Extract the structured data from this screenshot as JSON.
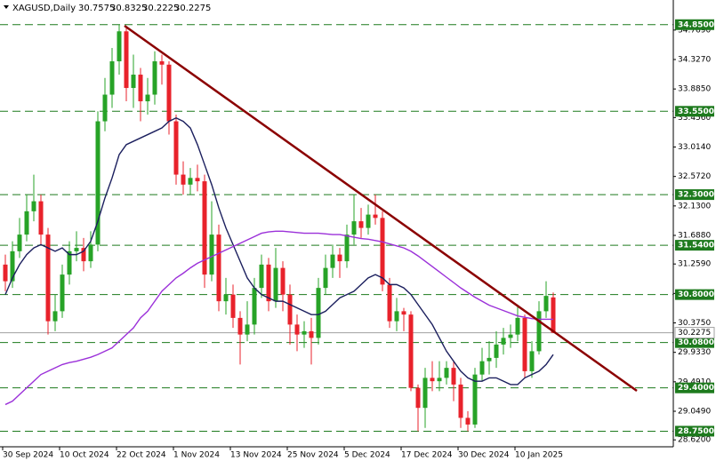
{
  "chart_data": {
    "type": "candlestick",
    "symbol": "XAGUSD,Daily",
    "categories": [
      "30 Sep 2024",
      null,
      null,
      null,
      null,
      null,
      null,
      null,
      "10 Oct 2024",
      null,
      null,
      null,
      null,
      null,
      null,
      null,
      "22 Oct 2024",
      null,
      null,
      null,
      null,
      null,
      null,
      null,
      "1 Nov 2024",
      null,
      null,
      null,
      null,
      null,
      null,
      null,
      "13 Nov 2024",
      null,
      null,
      null,
      null,
      null,
      null,
      null,
      "25 Nov 2024",
      null,
      null,
      null,
      null,
      null,
      null,
      null,
      "5 Dec 2024",
      null,
      null,
      null,
      null,
      null,
      null,
      null,
      "17 Dec 2024",
      null,
      null,
      null,
      null,
      null,
      null,
      null,
      "30 Dec 2024",
      null,
      null,
      null,
      null,
      null,
      null,
      null,
      "10 Jan 2025",
      null,
      null,
      null,
      null,
      null
    ],
    "open": [
      31.25,
      31.0,
      31.45,
      31.7,
      32.05,
      32.2,
      31.7,
      30.4,
      30.55,
      31.1,
      31.45,
      31.5,
      31.3,
      31.55,
      33.4,
      33.8,
      34.3,
      34.75,
      33.9,
      34.1,
      33.7,
      33.8,
      34.3,
      34.25,
      33.4,
      32.6,
      32.45,
      32.55,
      32.5,
      31.1,
      31.7,
      30.7,
      30.8,
      30.45,
      30.2,
      30.35,
      30.9,
      31.25,
      30.7,
      31.2,
      30.8,
      30.35,
      30.2,
      30.25,
      30.15,
      30.9,
      31.2,
      31.4,
      31.3,
      31.7,
      31.9,
      31.8,
      32.0,
      31.95,
      30.95,
      30.4,
      30.55,
      30.5,
      29.4,
      29.1,
      29.55,
      29.5,
      29.55,
      29.7,
      29.45,
      28.95,
      28.85,
      29.6,
      29.8,
      29.85,
      30.05,
      30.15,
      30.2,
      30.45,
      29.65,
      29.95,
      30.55,
      30.7575
    ],
    "high": [
      31.4,
      31.6,
      31.95,
      32.3,
      32.6,
      32.3,
      31.8,
      30.8,
      31.25,
      31.6,
      31.75,
      31.65,
      31.75,
      33.55,
      34.05,
      34.5,
      34.85,
      34.8,
      34.4,
      34.2,
      34.05,
      34.45,
      34.4,
      34.3,
      33.5,
      32.8,
      32.7,
      32.75,
      32.6,
      32.2,
      31.85,
      31.05,
      30.95,
      30.55,
      30.7,
      31.05,
      31.4,
      31.35,
      31.5,
      31.3,
      30.95,
      30.5,
      30.4,
      30.45,
      31.05,
      31.4,
      31.55,
      31.5,
      31.85,
      32.3,
      32.1,
      32.15,
      32.3,
      32.05,
      31.05,
      30.75,
      30.6,
      30.55,
      29.45,
      29.7,
      29.8,
      29.8,
      29.8,
      29.8,
      29.55,
      29.05,
      29.7,
      30.0,
      30.1,
      30.25,
      30.3,
      30.35,
      30.65,
      30.5,
      30.1,
      30.7,
      31.0,
      30.8325
    ],
    "low": [
      30.85,
      30.9,
      31.35,
      31.6,
      31.9,
      31.55,
      30.2,
      30.25,
      30.45,
      30.95,
      31.3,
      31.15,
      31.2,
      31.45,
      33.25,
      33.6,
      34.1,
      33.7,
      33.6,
      33.4,
      33.5,
      33.65,
      33.95,
      33.2,
      32.45,
      32.3,
      32.3,
      32.35,
      30.9,
      31.0,
      30.55,
      30.5,
      30.3,
      29.75,
      30.1,
      30.2,
      30.75,
      30.55,
      30.6,
      30.55,
      30.05,
      29.95,
      30.0,
      29.75,
      30.05,
      30.8,
      31.05,
      31.05,
      31.2,
      31.55,
      31.65,
      31.7,
      31.85,
      30.85,
      30.3,
      30.25,
      30.25,
      29.35,
      28.75,
      28.8,
      29.35,
      29.35,
      29.45,
      29.2,
      28.8,
      28.75,
      28.8,
      29.5,
      29.6,
      29.7,
      29.9,
      30.0,
      30.1,
      29.55,
      29.55,
      29.9,
      30.45,
      30.2225
    ],
    "close": [
      31.0,
      31.45,
      31.7,
      32.05,
      32.2,
      31.7,
      30.4,
      30.55,
      31.1,
      31.45,
      31.5,
      31.3,
      31.55,
      33.4,
      33.8,
      34.3,
      34.75,
      33.9,
      34.1,
      33.7,
      33.8,
      34.3,
      34.25,
      33.4,
      32.6,
      32.45,
      32.55,
      32.5,
      31.1,
      31.7,
      30.7,
      30.8,
      30.45,
      30.2,
      30.35,
      30.9,
      31.25,
      30.7,
      31.2,
      30.8,
      30.35,
      30.2,
      30.25,
      30.15,
      30.9,
      31.2,
      31.4,
      31.3,
      31.7,
      31.9,
      31.8,
      32.0,
      31.95,
      30.95,
      30.4,
      30.55,
      30.5,
      29.4,
      29.1,
      29.55,
      29.5,
      29.55,
      29.7,
      29.45,
      28.95,
      28.85,
      29.6,
      29.8,
      29.85,
      30.05,
      30.15,
      30.2,
      30.45,
      29.65,
      29.95,
      30.55,
      30.78,
      30.2275
    ],
    "up_color": "#27a327",
    "down_color": "#e8222b",
    "ma_lines": [
      {
        "color": "#1b1f5e",
        "values": [
          30.8,
          31.05,
          31.25,
          31.4,
          31.5,
          31.55,
          31.5,
          31.45,
          31.5,
          31.4,
          31.4,
          31.45,
          31.6,
          31.9,
          32.25,
          32.55,
          32.9,
          33.05,
          33.1,
          33.15,
          33.2,
          33.25,
          33.3,
          33.4,
          33.45,
          33.4,
          33.3,
          33.05,
          32.75,
          32.45,
          32.1,
          31.8,
          31.55,
          31.3,
          31.05,
          30.9,
          30.8,
          30.75,
          30.7,
          30.7,
          30.65,
          30.6,
          30.55,
          30.5,
          30.5,
          30.55,
          30.65,
          30.75,
          30.8,
          30.85,
          30.95,
          31.05,
          31.1,
          31.05,
          30.95,
          30.95,
          30.9,
          30.8,
          30.65,
          30.5,
          30.35,
          30.15,
          29.95,
          29.8,
          29.65,
          29.55,
          29.5,
          29.5,
          29.55,
          29.55,
          29.5,
          29.45,
          29.45,
          29.55,
          29.6,
          29.65,
          29.75,
          29.9
        ]
      },
      {
        "color": "#9b30d9",
        "values": [
          29.15,
          29.2,
          29.3,
          29.4,
          29.5,
          29.6,
          29.65,
          29.7,
          29.75,
          29.78,
          29.8,
          29.83,
          29.86,
          29.9,
          29.95,
          30.0,
          30.1,
          30.2,
          30.3,
          30.45,
          30.55,
          30.7,
          30.85,
          30.95,
          31.05,
          31.12,
          31.2,
          31.27,
          31.32,
          31.37,
          31.42,
          31.47,
          31.52,
          31.57,
          31.62,
          31.67,
          31.72,
          31.74,
          31.75,
          31.75,
          31.74,
          31.73,
          31.72,
          31.72,
          31.72,
          31.71,
          31.7,
          31.7,
          31.68,
          31.66,
          31.64,
          31.63,
          31.61,
          31.59,
          31.56,
          31.53,
          31.5,
          31.45,
          31.38,
          31.3,
          31.22,
          31.14,
          31.06,
          30.98,
          30.9,
          30.83,
          30.76,
          30.7,
          30.64,
          30.6,
          30.56,
          30.52,
          30.48,
          30.46,
          30.44,
          30.43,
          30.43,
          30.43
        ]
      }
    ],
    "levels": [
      {
        "value": 34.85,
        "label": "34.8500"
      },
      {
        "value": 33.55,
        "label": "33.5500"
      },
      {
        "value": 32.3,
        "label": "32.3000"
      },
      {
        "value": 31.54,
        "label": "31.5400"
      },
      {
        "value": 30.8,
        "label": "30.8000"
      },
      {
        "value": 30.08,
        "label": "30.0800"
      },
      {
        "value": 29.4,
        "label": "29.4000"
      },
      {
        "value": 28.75,
        "label": "28.7500"
      }
    ],
    "level_color": "#1d7a1d",
    "last_price": 30.2275,
    "ylim": [
      28.516,
      35.22
    ],
    "yticks": [
      {
        "value": 34.769,
        "label": "34.7690"
      },
      {
        "value": 34.327,
        "label": "34.3270"
      },
      {
        "value": 33.885,
        "label": "33.8850"
      },
      {
        "value": 33.456,
        "label": "33.4560"
      },
      {
        "value": 33.014,
        "label": "33.0140"
      },
      {
        "value": 32.572,
        "label": "32.5720"
      },
      {
        "value": 32.13,
        "label": "32.1300"
      },
      {
        "value": 31.688,
        "label": "31.6880"
      },
      {
        "value": 31.259,
        "label": "31.2590"
      },
      {
        "value": 30.817,
        "label": "30.8170"
      },
      {
        "value": 30.375,
        "label": "30.3750"
      },
      {
        "value": 29.933,
        "label": "29.9330"
      },
      {
        "value": 29.491,
        "label": "29.4910"
      },
      {
        "value": 29.049,
        "label": "29.0490"
      },
      {
        "value": 28.62,
        "label": "28.6200"
      }
    ]
  }
}
